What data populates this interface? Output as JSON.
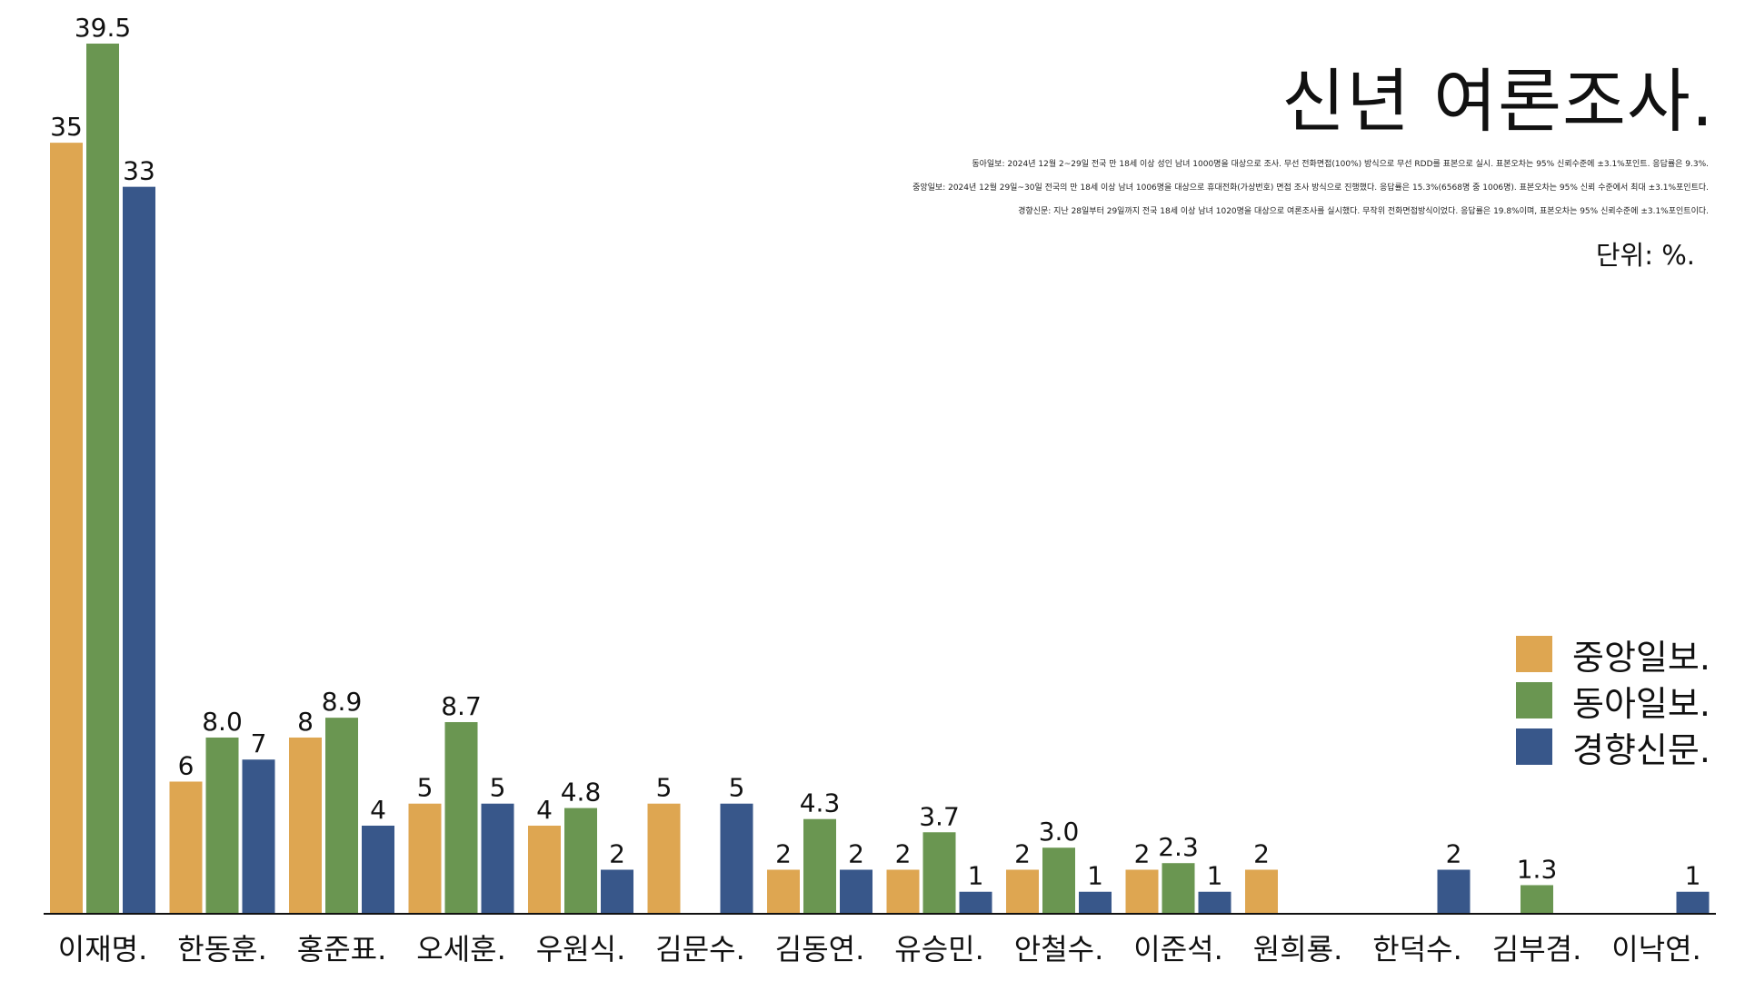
{
  "chart_data": {
    "type": "bar",
    "title": "신년 여론조사.",
    "unit": "단위: %.",
    "notes": [
      "동아일보: 2024년 12월 2~29일 전국 만 18세 이상 성인 남녀 1000명을 대상으로 조사. 무선 전화면접(100%) 방식으로 무선 RDD를 표본으로 실시. 표본오차는 95% 신뢰수준에 ±3.1%포인트. 응답률은 9.3%.",
      "중앙일보: 2024년 12월 29일~30일 전국의 만 18세 이상 남녀 1006명을 대상으로 휴대전화(가상번호) 면접 조사 방식으로 진행했다. 응답률은 15.3%(6568명 중 1006명). 표본오차는 95% 신뢰 수준에서 최대 ±3.1%포인트다.",
      "경향신문: 지난 28일부터 29일까지 전국 18세 이상 남녀 1020명을 대상으로 여론조사를 실시했다. 무작위 전화면접방식이었다. 응답률은 19.8%이며, 표본오차는 95% 신뢰수준에 ±3.1%포인트이다."
    ],
    "categories": [
      "이재명.",
      "한동훈.",
      "홍준표.",
      "오세훈.",
      "우원식.",
      "김문수.",
      "김동연.",
      "유승민.",
      "안철수.",
      "이준석.",
      "원희룡.",
      "한덕수.",
      "김부겸.",
      "이낙연."
    ],
    "series": [
      {
        "name": "중앙일보.",
        "color": "#DEA651",
        "values": [
          35,
          6,
          8,
          5,
          4,
          5,
          2,
          2,
          2,
          2,
          2,
          null,
          null,
          null
        ],
        "labels": [
          "35",
          "6",
          "8",
          "5",
          "4",
          "5",
          "2",
          "2",
          "2",
          "2",
          "2",
          "",
          "",
          ""
        ]
      },
      {
        "name": "동아일보.",
        "color": "#6A9651",
        "values": [
          39.5,
          8.0,
          8.9,
          8.7,
          4.8,
          null,
          4.3,
          3.7,
          3.0,
          2.3,
          null,
          null,
          1.3,
          null
        ],
        "labels": [
          "39.5",
          "8.0",
          "8.9",
          "8.7",
          "4.8",
          "",
          "4.3",
          "3.7",
          "3.0",
          "2.3",
          "",
          "",
          "1.3",
          ""
        ]
      },
      {
        "name": "경향신문.",
        "color": "#38578A",
        "values": [
          33,
          7,
          4,
          5,
          2,
          5,
          2,
          1,
          1,
          1,
          null,
          2,
          null,
          1
        ],
        "labels": [
          "33",
          "7",
          "4",
          "5",
          "2",
          "5",
          "2",
          "1",
          "1",
          "1",
          "",
          "2",
          "",
          "1"
        ]
      }
    ],
    "ylim": [
      0,
      39.5
    ],
    "grid": false,
    "legend_position": "right"
  }
}
